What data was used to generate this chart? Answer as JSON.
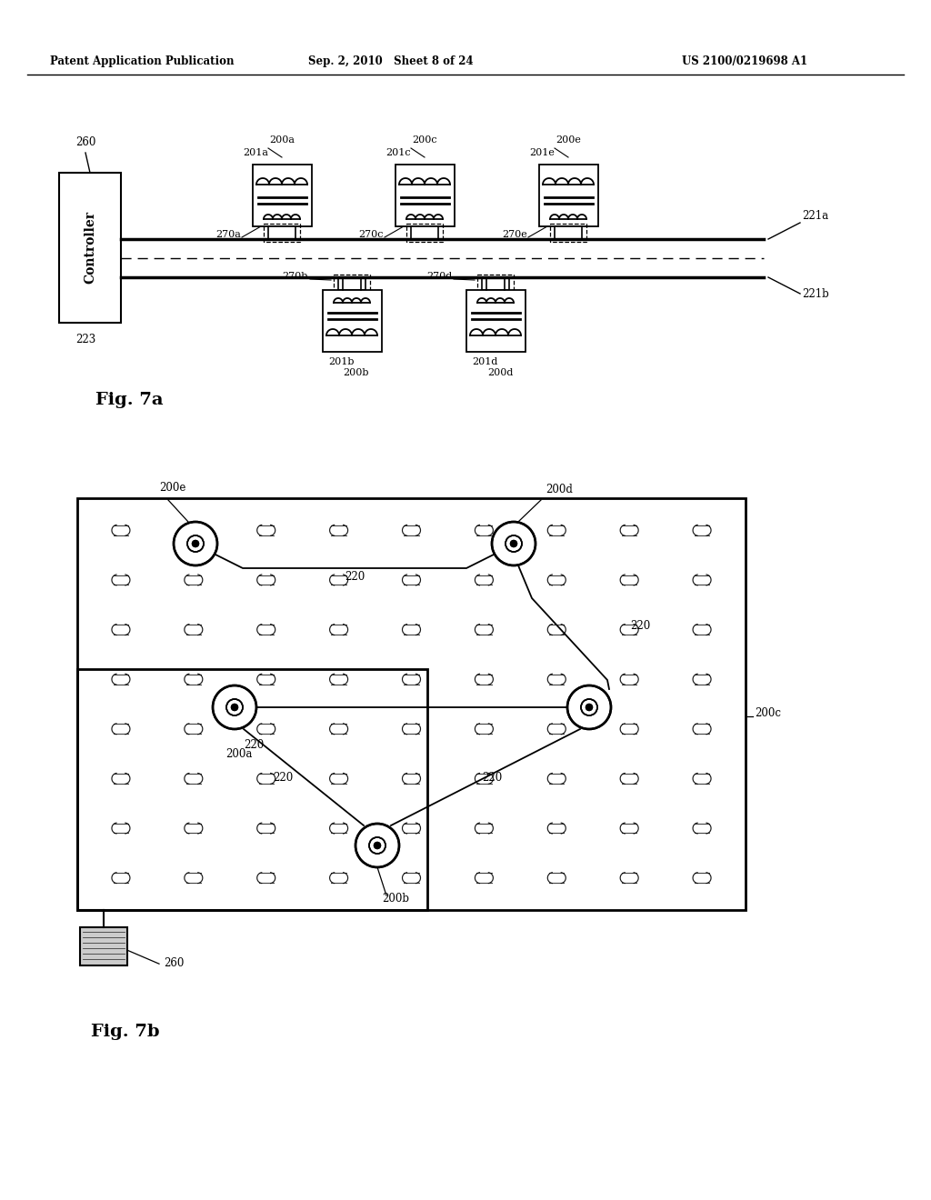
{
  "header_left": "Patent Application Publication",
  "header_mid": "Sep. 2, 2010   Sheet 8 of 24",
  "header_right": "US 2100/0219698 A1",
  "fig7a_label": "Fig. 7a",
  "fig7b_label": "Fig. 7b",
  "bg_color": "#ffffff",
  "line_color": "#000000"
}
